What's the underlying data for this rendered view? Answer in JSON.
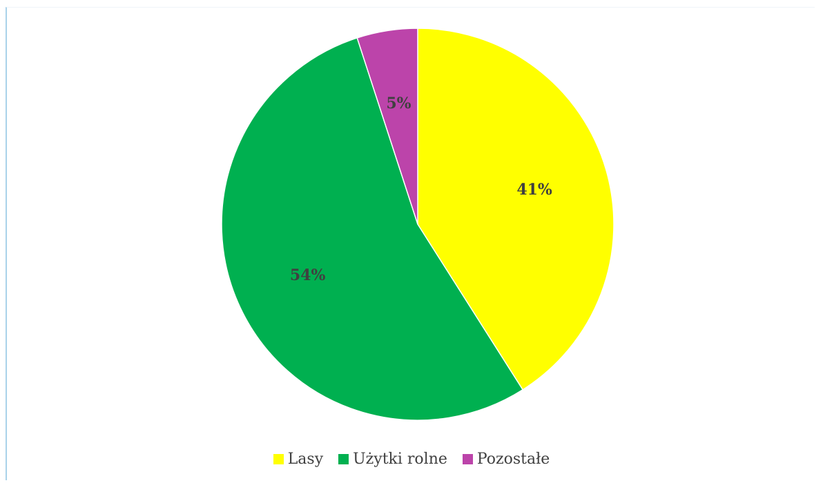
{
  "chart_data": {
    "type": "pie",
    "title": "",
    "slices": [
      {
        "label": "Lasy",
        "value": 41,
        "display": "41%",
        "color": "#ffff00"
      },
      {
        "label": "Użytki rolne",
        "value": 54,
        "display": "54%",
        "color": "#00b050"
      },
      {
        "label": "Pozostałe",
        "value": 5,
        "display": "5%",
        "color": "#bc44aa"
      }
    ],
    "start_angle_deg": 0,
    "direction": "clockwise",
    "legend_position": "bottom"
  }
}
